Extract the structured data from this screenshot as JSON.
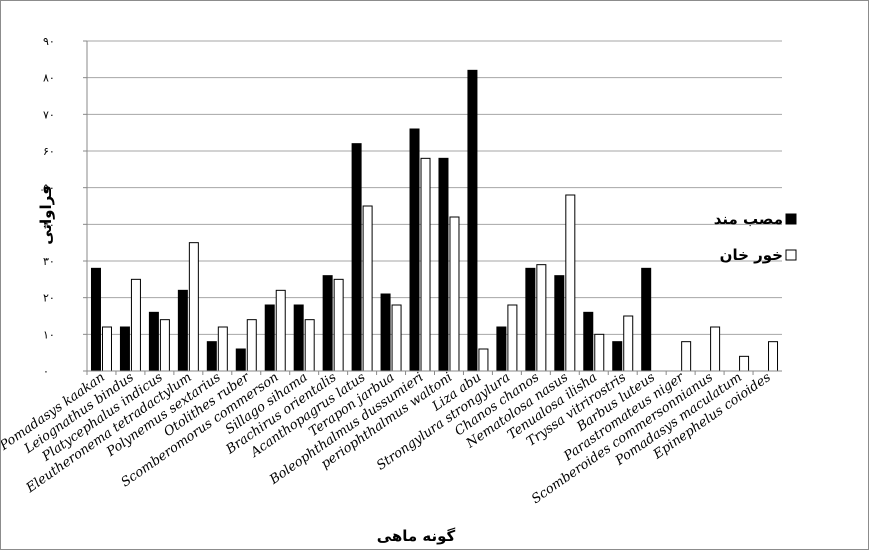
{
  "chart_data": {
    "type": "bar",
    "title": "",
    "xlabel": "گونه ماهی",
    "ylabel": "فراوانی",
    "ylim": [
      0,
      90
    ],
    "yticks": [
      "۰",
      "۱۰",
      "۲۰",
      "۳۰",
      "۴۰",
      "۵۰",
      "۶۰",
      "۷۰",
      "۸۰",
      "۹۰"
    ],
    "grid": true,
    "legend_position": "right",
    "categories": [
      "Pomadasys kaakan",
      "Leiognathus bindus",
      "Platycephalus indicus",
      "Eleutheronema tetradactylum",
      "Polynemus sextarius",
      "Otolithes ruber",
      "Scomberomorus commerson",
      "Sillago sihama",
      "Brachirus orientalis",
      "Acanthopagrus latus",
      "Terapon jarbua",
      "Boleophthalmus dussumieri",
      "periophthalmus waltoni",
      "Liza abu",
      "Strongylura strongylura",
      "Chanos chanos",
      "Nematolosa nasus",
      "Tenualosa ilisha",
      "Tryssa vitrirostris",
      "Barbus luteus",
      "Parastromateus niger",
      "Scomberoides commersonnianus",
      "Pomadasys maculatum",
      "Epinephelus coioides"
    ],
    "series": [
      {
        "name": "مصب مند",
        "color": "#000000",
        "values": [
          28,
          12,
          16,
          22,
          8,
          6,
          18,
          18,
          26,
          62,
          21,
          66,
          58,
          82,
          12,
          28,
          26,
          16,
          8,
          28,
          0,
          0,
          0,
          0
        ]
      },
      {
        "name": "خور خان",
        "color": "#ffffff",
        "values": [
          12,
          25,
          14,
          35,
          12,
          14,
          22,
          14,
          25,
          45,
          18,
          58,
          42,
          6,
          18,
          29,
          48,
          10,
          15,
          0,
          8,
          12,
          4,
          8
        ]
      }
    ]
  }
}
